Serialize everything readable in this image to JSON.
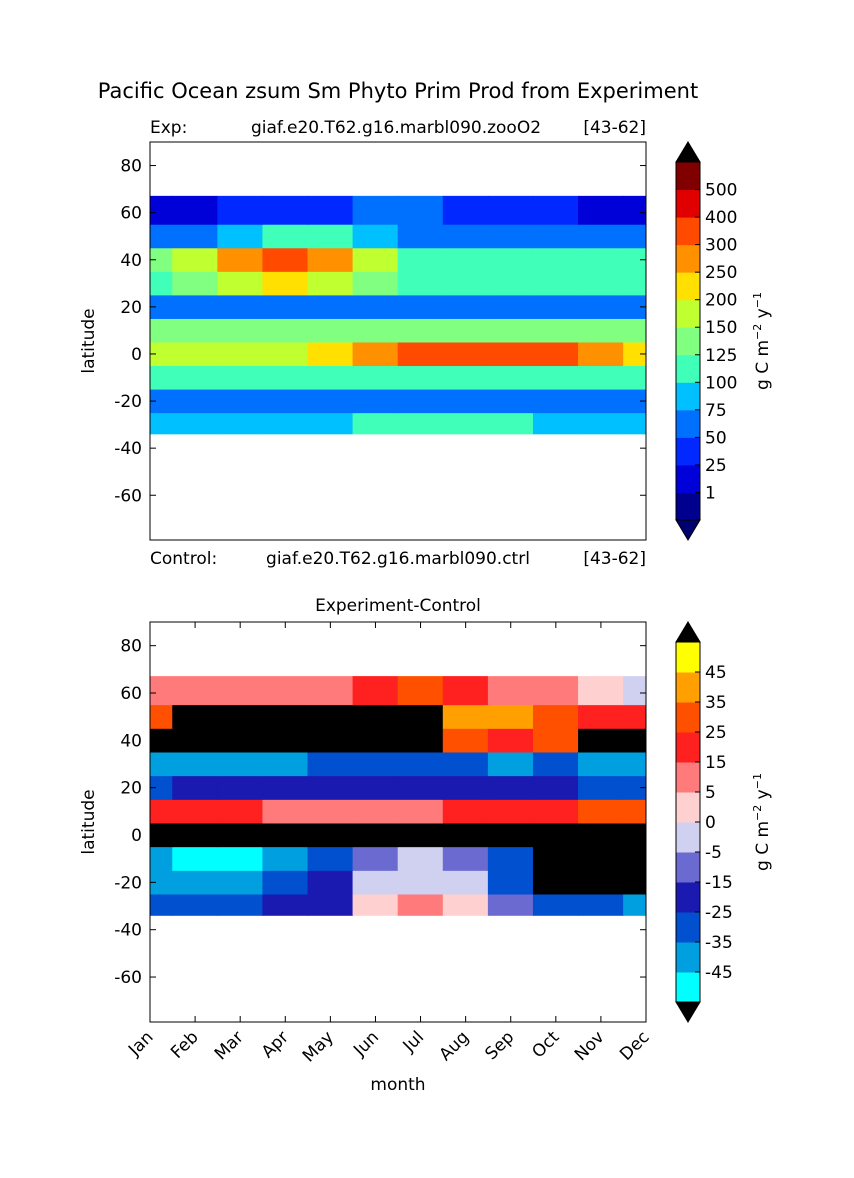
{
  "chart_data": [
    {
      "type": "contour",
      "title": "Pacific Ocean zsum Sm Phyto Prim Prod from Experiment",
      "left_title": "Exp:",
      "center_title": "giaf.e20.T62.g16.marbl090.zooO2",
      "right_title": "[43-62]",
      "bottom_left": "Control:",
      "bottom_center": "giaf.e20.T62.g16.marbl090.ctrl",
      "bottom_right": "[43-62]",
      "ylabel": "latitude",
      "ylim": [
        -79,
        90
      ],
      "yticks": [
        -60,
        -40,
        -20,
        0,
        20,
        40,
        60,
        80
      ],
      "ybins": [
        -34,
        -25,
        -15,
        -5,
        5,
        15,
        25,
        35,
        45,
        55,
        67
      ],
      "z": [
        [
          80,
          80,
          85,
          85,
          90,
          100,
          110,
          120,
          110,
          90,
          80,
          80
        ],
        [
          60,
          60,
          60,
          60,
          60,
          65,
          70,
          70,
          65,
          60,
          60,
          60
        ],
        [
          110,
          110,
          110,
          110,
          115,
          120,
          120,
          120,
          115,
          110,
          110,
          110
        ],
        [
          170,
          180,
          180,
          170,
          200,
          280,
          320,
          330,
          320,
          300,
          250,
          200
        ],
        [
          130,
          130,
          130,
          130,
          130,
          130,
          130,
          130,
          135,
          140,
          140,
          140
        ],
        [
          60,
          60,
          55,
          55,
          55,
          60,
          60,
          60,
          60,
          55,
          55,
          60
        ],
        [
          120,
          130,
          160,
          210,
          170,
          130,
          120,
          110,
          110,
          110,
          110,
          110
        ],
        [
          130,
          180,
          280,
          320,
          260,
          150,
          120,
          100,
          100,
          110,
          100,
          100
        ],
        [
          50,
          60,
          80,
          100,
          110,
          90,
          70,
          60,
          60,
          60,
          60,
          50
        ],
        [
          20,
          20,
          25,
          30,
          40,
          60,
          55,
          40,
          30,
          25,
          20,
          15
        ]
      ],
      "colorbar": {
        "levels": [
          0,
          1,
          25,
          50,
          75,
          100,
          125,
          150,
          200,
          250,
          300,
          400,
          500,
          600
        ],
        "ticks": [
          1,
          25,
          50,
          75,
          100,
          125,
          150,
          200,
          250,
          300,
          400,
          500
        ],
        "colors": [
          "#00008f",
          "#0000d8",
          "#0028ff",
          "#0070ff",
          "#00c0ff",
          "#40ffb8",
          "#80ff80",
          "#c0ff30",
          "#ffe000",
          "#ff9000",
          "#ff4a00",
          "#e00000",
          "#800000"
        ],
        "under_color": "#000070",
        "over_color": "#000000",
        "label": [
          "g C m",
          "−2",
          " y",
          "−1"
        ]
      }
    },
    {
      "type": "contour",
      "title": "Experiment-Control",
      "ylabel": "latitude",
      "xlabel": "month",
      "categories": [
        "Jan",
        "Feb",
        "Mar",
        "Apr",
        "May",
        "Jun",
        "Jul",
        "Aug",
        "Sep",
        "Oct",
        "Nov",
        "Dec"
      ],
      "ylim": [
        -79,
        90
      ],
      "yticks": [
        -60,
        -40,
        -20,
        0,
        20,
        40,
        60,
        80
      ],
      "ybins": [
        -34,
        -25,
        -15,
        -5,
        5,
        15,
        25,
        35,
        45,
        55,
        67
      ],
      "z": [
        [
          -30,
          -30,
          -30,
          -25,
          -20,
          0,
          5,
          0,
          -10,
          -30,
          -30,
          -40
        ],
        [
          -40,
          -40,
          -40,
          -35,
          -25,
          -5,
          -3,
          -5,
          -30,
          70,
          70,
          70
        ],
        [
          -45,
          -50,
          -50,
          -45,
          -30,
          -10,
          -5,
          -10,
          -35,
          70,
          70,
          70
        ],
        [
          70,
          70,
          70,
          70,
          70,
          70,
          70,
          70,
          70,
          70,
          70,
          70
        ],
        [
          20,
          20,
          15,
          10,
          10,
          10,
          10,
          15,
          20,
          20,
          25,
          30
        ],
        [
          -30,
          -25,
          -20,
          -20,
          -20,
          -25,
          -20,
          -20,
          -25,
          -25,
          -30,
          -30
        ],
        [
          -45,
          -40,
          -40,
          -40,
          -35,
          -30,
          -30,
          -35,
          -40,
          -35,
          -40,
          -40
        ],
        [
          70,
          70,
          70,
          70,
          70,
          70,
          70,
          30,
          20,
          30,
          70,
          70
        ],
        [
          25,
          70,
          70,
          70,
          70,
          70,
          70,
          40,
          40,
          30,
          20,
          20
        ],
        [
          5,
          5,
          5,
          5,
          10,
          20,
          30,
          20,
          10,
          5,
          0,
          -3
        ]
      ],
      "colorbar": {
        "levels": [
          -55,
          -45,
          -35,
          -25,
          -15,
          -5,
          0,
          5,
          15,
          25,
          35,
          45,
          55
        ],
        "ticks": [
          -45,
          -35,
          -25,
          -15,
          -5,
          0,
          5,
          15,
          25,
          35,
          45
        ],
        "colors": [
          "#00ffff",
          "#00a0e0",
          "#0050d0",
          "#1a1ab0",
          "#6a6ad0",
          "#d0d0f0",
          "#ffd0d0",
          "#ff7a7a",
          "#ff2020",
          "#ff5000",
          "#ffa000",
          "#ffff00"
        ],
        "under_color": "#000000",
        "over_color": "#000000",
        "label": [
          "g C m",
          "−2",
          " y",
          "−1"
        ]
      }
    }
  ]
}
